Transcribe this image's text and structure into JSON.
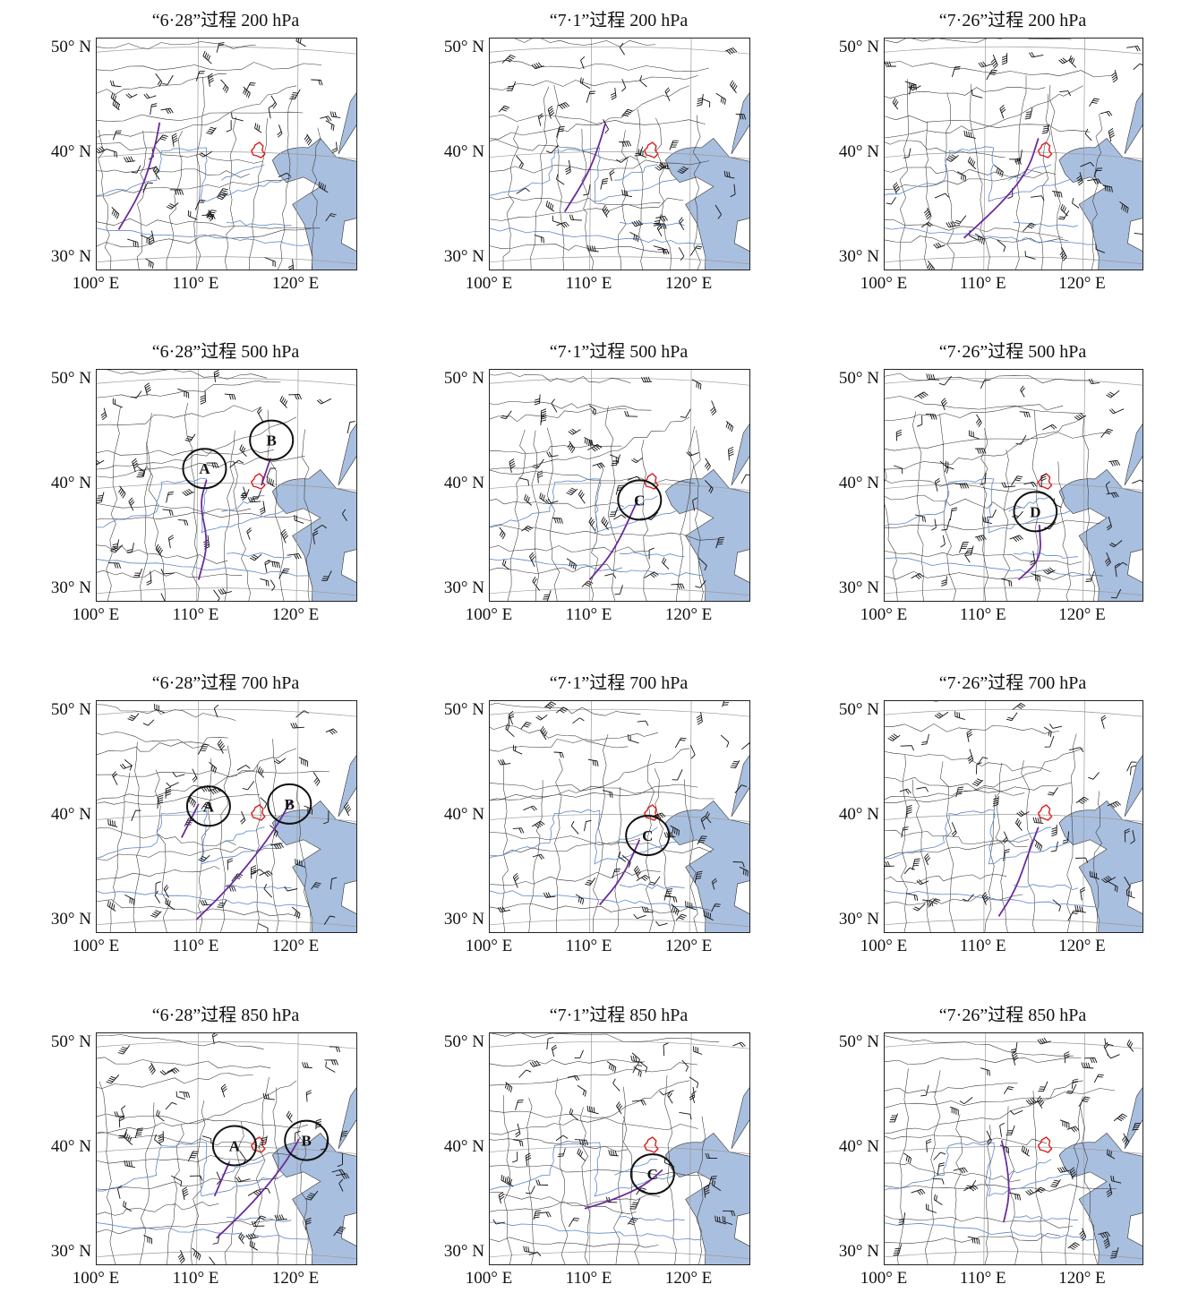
{
  "figure": {
    "y_axis_labels": [
      "50° N",
      "40° N",
      "30° N"
    ],
    "x_axis_labels": [
      "100° E",
      "110° E",
      "120° E"
    ],
    "colors": {
      "sea": "#a9bfdf",
      "rivers": "#5a88c8",
      "borders": "#333333",
      "graticule": "#9a9a9a",
      "trough_line": "#6a2b9c",
      "region_outline": "#d81e1e",
      "circle": "#111111",
      "wind_barb": "#111111"
    },
    "panels": [
      {
        "id": "p628-200",
        "title": "“6·28”过程   200 hPa",
        "systems": [],
        "troughs": [
          [
            [
              102.2,
              32.8
            ],
            [
              104.5,
              36.5
            ],
            [
              105.8,
              40.5
            ],
            [
              106.3,
              43
            ]
          ]
        ]
      },
      {
        "id": "p71-200",
        "title": "“7·1”过程   200 hPa",
        "systems": [],
        "troughs": [
          [
            [
              107.5,
              34.5
            ],
            [
              109.8,
              38
            ],
            [
              111,
              41
            ],
            [
              111.6,
              43
            ]
          ]
        ]
      },
      {
        "id": "p726-200",
        "title": "“7·26”过程   200 hPa",
        "systems": [],
        "troughs": [
          [
            [
              108,
              32
            ],
            [
              112,
              35.5
            ],
            [
              114.5,
              38.5
            ],
            [
              115.5,
              41.5
            ]
          ]
        ]
      },
      {
        "id": "p628-500",
        "title": "“6·28”过程   500 hPa",
        "systems": [
          {
            "label": "A",
            "lon": 110.8,
            "lat": 41.6
          },
          {
            "label": "B",
            "lon": 117.5,
            "lat": 44.3
          }
        ],
        "troughs": [
          [
            [
              110.2,
              31
            ],
            [
              111.2,
              34.5
            ],
            [
              110.3,
              38.2
            ],
            [
              111,
              40.5
            ]
          ],
          [
            [
              116.5,
              40
            ],
            [
              117.4,
              42.6
            ]
          ]
        ]
      },
      {
        "id": "p71-500",
        "title": "“7·1”过程   500 hPa",
        "systems": [
          {
            "label": "C",
            "lon": 115,
            "lat": 38.6
          }
        ],
        "troughs": [
          [
            [
              110,
              31
            ],
            [
              112.5,
              33.8
            ],
            [
              114.8,
              38.6
            ]
          ]
        ]
      },
      {
        "id": "p726-500",
        "title": "“7·26”过程   500 hPa",
        "systems": [
          {
            "label": "D",
            "lon": 115.2,
            "lat": 37.5
          }
        ],
        "troughs": [
          [
            [
              113.5,
              31
            ],
            [
              115.8,
              33
            ],
            [
              115.6,
              36.2
            ]
          ]
        ]
      },
      {
        "id": "p628-700",
        "title": "“6·28”过程   700 hPa",
        "systems": [
          {
            "label": "A",
            "lon": 111.2,
            "lat": 41
          },
          {
            "label": "B",
            "lon": 119.3,
            "lat": 41.2
          }
        ],
        "troughs": [
          [
            [
              108.5,
              38
            ],
            [
              110.2,
              41.2
            ]
          ],
          [
            [
              110,
              30.2
            ],
            [
              113.5,
              33.5
            ],
            [
              117.3,
              38
            ],
            [
              119.5,
              41.5
            ]
          ]
        ]
      },
      {
        "id": "p71-700",
        "title": "“7·1”过程   700 hPa",
        "systems": [
          {
            "label": "C",
            "lon": 115.8,
            "lat": 38.2
          }
        ],
        "troughs": [
          [
            [
              111,
              31.6
            ],
            [
              113.3,
              34.2
            ],
            [
              115,
              37.8
            ]
          ]
        ]
      },
      {
        "id": "p726-700",
        "title": "“7·26”过程   700 hPa",
        "systems": [],
        "troughs": [
          [
            [
              111.5,
              30.5
            ],
            [
              113.2,
              33
            ],
            [
              114.5,
              36.5
            ],
            [
              115.5,
              39
            ]
          ]
        ]
      },
      {
        "id": "p628-850",
        "title": "“6·28”过程   850 hPa",
        "systems": [
          {
            "label": "A",
            "lon": 113.8,
            "lat": 40.3
          },
          {
            "label": "B",
            "lon": 121,
            "lat": 40.8
          }
        ],
        "troughs": [
          [
            [
              111.8,
              35.5
            ],
            [
              113.3,
              38.8
            ]
          ],
          [
            [
              112,
              31.5
            ],
            [
              115.6,
              34.8
            ],
            [
              118.8,
              38.5
            ],
            [
              120.3,
              41
            ]
          ]
        ]
      },
      {
        "id": "p71-850",
        "title": "“7·1”过程   850 hPa",
        "systems": [
          {
            "label": "C",
            "lon": 116.3,
            "lat": 37.6
          }
        ],
        "troughs": [
          [
            [
              109.5,
              34.3
            ],
            [
              112.5,
              35.2
            ],
            [
              115.5,
              36.5
            ],
            [
              117.3,
              38
            ]
          ]
        ]
      },
      {
        "id": "p726-850",
        "title": "“7·26”过程   850 hPa",
        "systems": [],
        "troughs": [
          [
            [
              112,
              33
            ],
            [
              112.6,
              35.5
            ],
            [
              112.4,
              38.2
            ],
            [
              111.8,
              40.8
            ]
          ]
        ]
      }
    ]
  }
}
